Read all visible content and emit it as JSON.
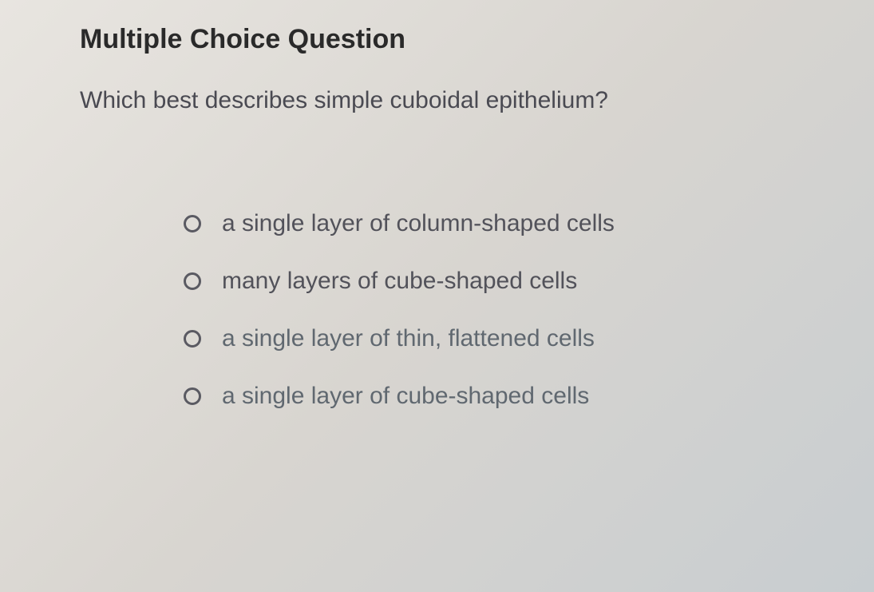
{
  "heading": "Multiple Choice Question",
  "question": "Which best describes simple cuboidal epithelium?",
  "options": [
    {
      "label": "a single layer of column-shaped cells"
    },
    {
      "label": "many layers of cube-shaped cells"
    },
    {
      "label": "a single layer of thin, flattened cells"
    },
    {
      "label": "a single layer of cube-shaped cells"
    }
  ],
  "colors": {
    "heading_color": "#2a2a2a",
    "text_color": "#4a4a52",
    "option_color": "#52525a",
    "radio_border": "#5a5a62",
    "background_start": "#e8e5e0",
    "background_end": "#c8cdd0"
  },
  "typography": {
    "heading_fontsize": 34,
    "heading_weight": "bold",
    "question_fontsize": 30,
    "option_fontsize": 30
  }
}
